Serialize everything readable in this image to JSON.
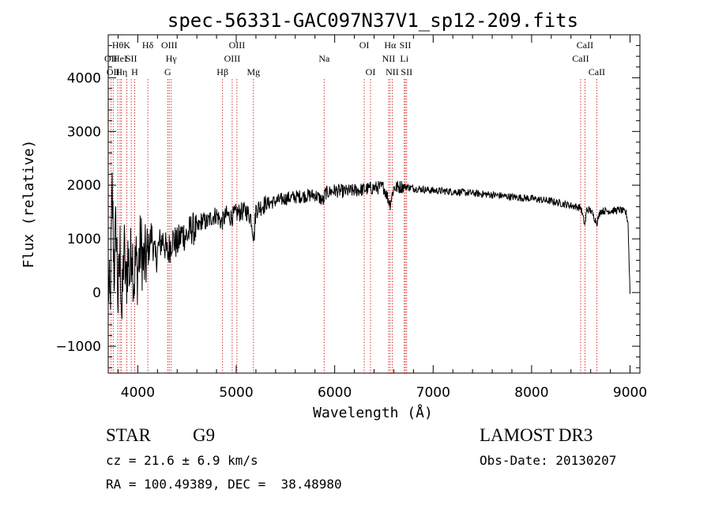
{
  "chart_data": {
    "type": "line",
    "title": "spec-56331-GAC097N37V1_sp12-209.fits",
    "xlabel": "Wavelength (Å)",
    "ylabel": "Flux (relative)",
    "xlim": [
      3700,
      9100
    ],
    "ylim": [
      -1500,
      4800
    ],
    "x_ticks": [
      4000,
      5000,
      6000,
      7000,
      8000,
      9000
    ],
    "x_tick_labels": [
      "4000",
      "5000",
      "6000",
      "7000",
      "8000",
      "9000"
    ],
    "y_ticks": [
      -1000,
      0,
      1000,
      2000,
      3000,
      4000
    ],
    "y_tick_labels": [
      "−1000",
      "0",
      "1000",
      "2000",
      "3000",
      "4000"
    ],
    "grid": false,
    "series": [
      {
        "name": "spectrum",
        "color": "#000000",
        "points": [
          [
            3700,
            200
          ],
          [
            3720,
            -300
          ],
          [
            3740,
            1900
          ],
          [
            3760,
            400
          ],
          [
            3780,
            1300
          ],
          [
            3800,
            -200
          ],
          [
            3820,
            800
          ],
          [
            3840,
            -500
          ],
          [
            3860,
            900
          ],
          [
            3880,
            100
          ],
          [
            3900,
            700
          ],
          [
            3920,
            300
          ],
          [
            3940,
            1000
          ],
          [
            3960,
            200
          ],
          [
            3980,
            600
          ],
          [
            4000,
            400
          ],
          [
            4030,
            900
          ],
          [
            4060,
            500
          ],
          [
            4100,
            700
          ],
          [
            4140,
            1100
          ],
          [
            4180,
            600
          ],
          [
            4220,
            900
          ],
          [
            4260,
            1000
          ],
          [
            4300,
            700
          ],
          [
            4350,
            1000
          ],
          [
            4400,
            900
          ],
          [
            4450,
            1100
          ],
          [
            4500,
            1050
          ],
          [
            4550,
            1200
          ],
          [
            4600,
            1150
          ],
          [
            4650,
            1350
          ],
          [
            4700,
            1300
          ],
          [
            4750,
            1400
          ],
          [
            4800,
            1450
          ],
          [
            4850,
            1300
          ],
          [
            4900,
            1450
          ],
          [
            4950,
            1400
          ],
          [
            5000,
            1480
          ],
          [
            5050,
            1500
          ],
          [
            5100,
            1520
          ],
          [
            5150,
            1400
          ],
          [
            5180,
            1000
          ],
          [
            5200,
            1550
          ],
          [
            5250,
            1600
          ],
          [
            5300,
            1650
          ],
          [
            5400,
            1700
          ],
          [
            5500,
            1750
          ],
          [
            5600,
            1780
          ],
          [
            5700,
            1800
          ],
          [
            5800,
            1820
          ],
          [
            5890,
            1700
          ],
          [
            5900,
            1850
          ],
          [
            6000,
            1900
          ],
          [
            6100,
            1880
          ],
          [
            6200,
            1900
          ],
          [
            6300,
            1920
          ],
          [
            6400,
            1950
          ],
          [
            6500,
            1960
          ],
          [
            6563,
            1650
          ],
          [
            6600,
            1950
          ],
          [
            6700,
            1980
          ],
          [
            6800,
            1940
          ],
          [
            6900,
            1920
          ],
          [
            7000,
            1900
          ],
          [
            7200,
            1880
          ],
          [
            7400,
            1850
          ],
          [
            7600,
            1820
          ],
          [
            7800,
            1780
          ],
          [
            8000,
            1750
          ],
          [
            8200,
            1700
          ],
          [
            8400,
            1620
          ],
          [
            8500,
            1580
          ],
          [
            8542,
            1250
          ],
          [
            8560,
            1550
          ],
          [
            8600,
            1530
          ],
          [
            8662,
            1300
          ],
          [
            8700,
            1520
          ],
          [
            8800,
            1520
          ],
          [
            8900,
            1540
          ],
          [
            8960,
            1480
          ],
          [
            8980,
            1300
          ],
          [
            8990,
            600
          ],
          [
            9000,
            0
          ]
        ]
      }
    ],
    "lines": [
      {
        "wl": 3727,
        "labels": [
          "OII"
        ],
        "row": 2
      },
      {
        "wl": 3750,
        "labels": [
          "OII"
        ],
        "row": 3
      },
      {
        "wl": 3797,
        "labels": [
          "Hθ"
        ],
        "row": 1
      },
      {
        "wl": 3820,
        "labels": [
          "HeI"
        ],
        "row": 2
      },
      {
        "wl": 3835,
        "labels": [
          "Hη"
        ],
        "row": 3
      },
      {
        "wl": 3889,
        "labels": [
          "K"
        ],
        "row": 1
      },
      {
        "wl": 3934,
        "labels": [
          "SII"
        ],
        "row": 2
      },
      {
        "wl": 3968,
        "labels": [
          "H"
        ],
        "row": 3
      },
      {
        "wl": 4102,
        "labels": [
          "Hδ"
        ],
        "row": 1
      },
      {
        "wl": 4320,
        "labels": [
          "OIII"
        ],
        "row": 1
      },
      {
        "wl": 4340,
        "labels": [
          "Hγ"
        ],
        "row": 2
      },
      {
        "wl": 4304,
        "labels": [
          "G"
        ],
        "row": 3
      },
      {
        "wl": 4861,
        "labels": [
          "Hβ"
        ],
        "row": 3
      },
      {
        "wl": 4959,
        "labels": [
          "OIII"
        ],
        "row": 2
      },
      {
        "wl": 5007,
        "labels": [
          "OIII"
        ],
        "row": 1
      },
      {
        "wl": 5175,
        "labels": [
          "Mg"
        ],
        "row": 3
      },
      {
        "wl": 5893,
        "labels": [
          "Na"
        ],
        "row": 2
      },
      {
        "wl": 6300,
        "labels": [
          "OI"
        ],
        "row": 1
      },
      {
        "wl": 6364,
        "labels": [
          "OI"
        ],
        "row": 3
      },
      {
        "wl": 6548,
        "labels": [
          "NII"
        ],
        "row": 2
      },
      {
        "wl": 6563,
        "labels": [
          "Hα"
        ],
        "row": 1
      },
      {
        "wl": 6584,
        "labels": [
          "NII"
        ],
        "row": 3
      },
      {
        "wl": 6707,
        "labels": [
          "Li"
        ],
        "row": 2
      },
      {
        "wl": 6717,
        "labels": [
          "SII"
        ],
        "row": 1
      },
      {
        "wl": 6731,
        "labels": [
          "SII"
        ],
        "row": 3
      },
      {
        "wl": 8498,
        "labels": [
          "CaII"
        ],
        "row": 2
      },
      {
        "wl": 8542,
        "labels": [
          "CaII"
        ],
        "row": 1
      },
      {
        "wl": 8662,
        "labels": [
          "CaII"
        ],
        "row": 3
      }
    ]
  },
  "footer": {
    "class_label": "STAR",
    "subclass": "G9",
    "survey": "LAMOST DR3",
    "cz": "cz = 21.6 ± 6.9 km/s",
    "obs_date": "Obs-Date: 20130207",
    "coords": "RA = 100.49389, DEC =  38.48980"
  }
}
